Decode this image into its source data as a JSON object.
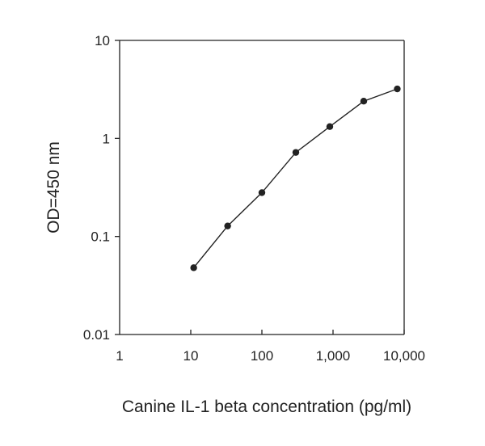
{
  "chart_data": {
    "type": "line",
    "title": "",
    "xlabel": "Canine IL-1 beta concentration (pg/ml)",
    "ylabel": "OD=450 nm",
    "x_scale": "log",
    "y_scale": "log",
    "xlim": [
      1,
      10000
    ],
    "ylim": [
      0.01,
      10
    ],
    "x_ticks": [
      1,
      10,
      100,
      1000,
      10000
    ],
    "x_tick_labels": [
      "1",
      "10",
      "100",
      "1,000",
      "10,000"
    ],
    "y_ticks": [
      0.01,
      0.1,
      1,
      10
    ],
    "y_tick_labels": [
      "0.01",
      "0.1",
      "1",
      "10"
    ],
    "grid": false,
    "legend": "none",
    "line_color": "#222222",
    "series": [
      {
        "x": [
          11,
          33,
          100,
          300,
          900,
          2700,
          8000
        ],
        "y": [
          0.048,
          0.128,
          0.28,
          0.72,
          1.32,
          2.4,
          3.2
        ]
      }
    ]
  }
}
